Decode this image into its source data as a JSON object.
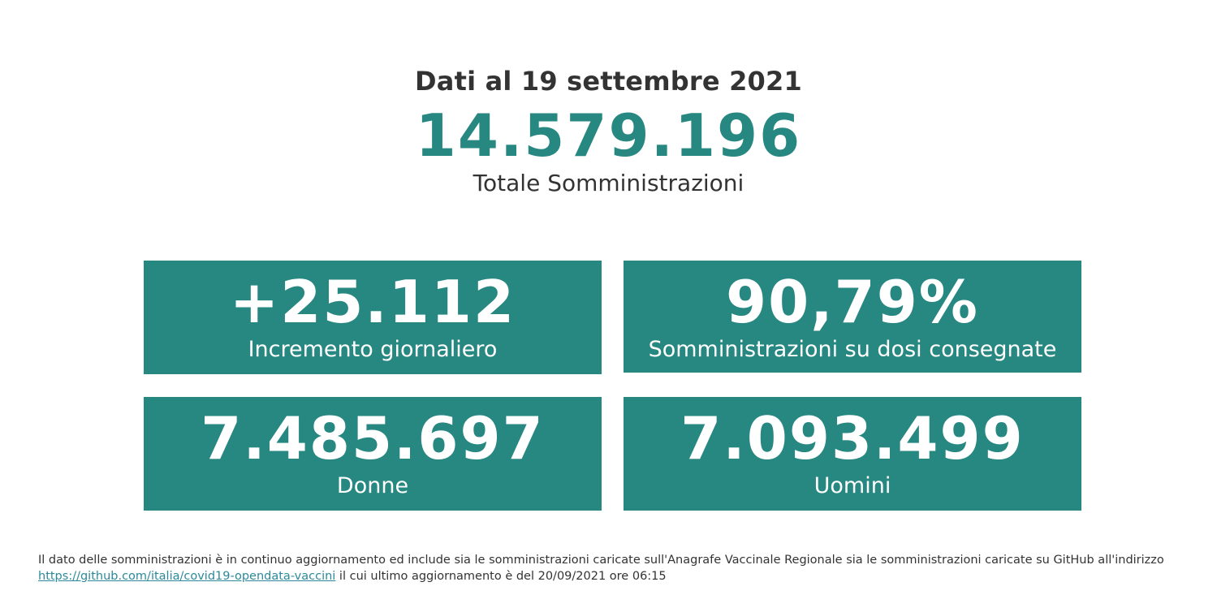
{
  "colors": {
    "accent": "#278781",
    "text": "#333333",
    "link": "#2a8a9a"
  },
  "header": {
    "date_line": "Dati al 19 settembre 2021",
    "total_value": "14.579.196",
    "total_label": "Totale Somministrazioni"
  },
  "cards": [
    {
      "value": "+25.112",
      "label": "Incremento giornaliero"
    },
    {
      "value": "90,79%",
      "label": "Somministrazioni su dosi consegnate"
    },
    {
      "value": "7.485.697",
      "label": "Donne"
    },
    {
      "value": "7.093.499",
      "label": "Uomini"
    }
  ],
  "footnote": {
    "text_before": "Il dato delle somministrazioni è in continuo aggiornamento ed include sia le somministrazioni caricate sull'Anagrafe Vaccinale Regionale sia le somministrazioni caricate su GitHub all'indirizzo",
    "link_text": "https://github.com/italia/covid19-opendata-vaccini",
    "text_after": " il cui ultimo aggiornamento è del 20/09/2021 ore 06:15"
  }
}
